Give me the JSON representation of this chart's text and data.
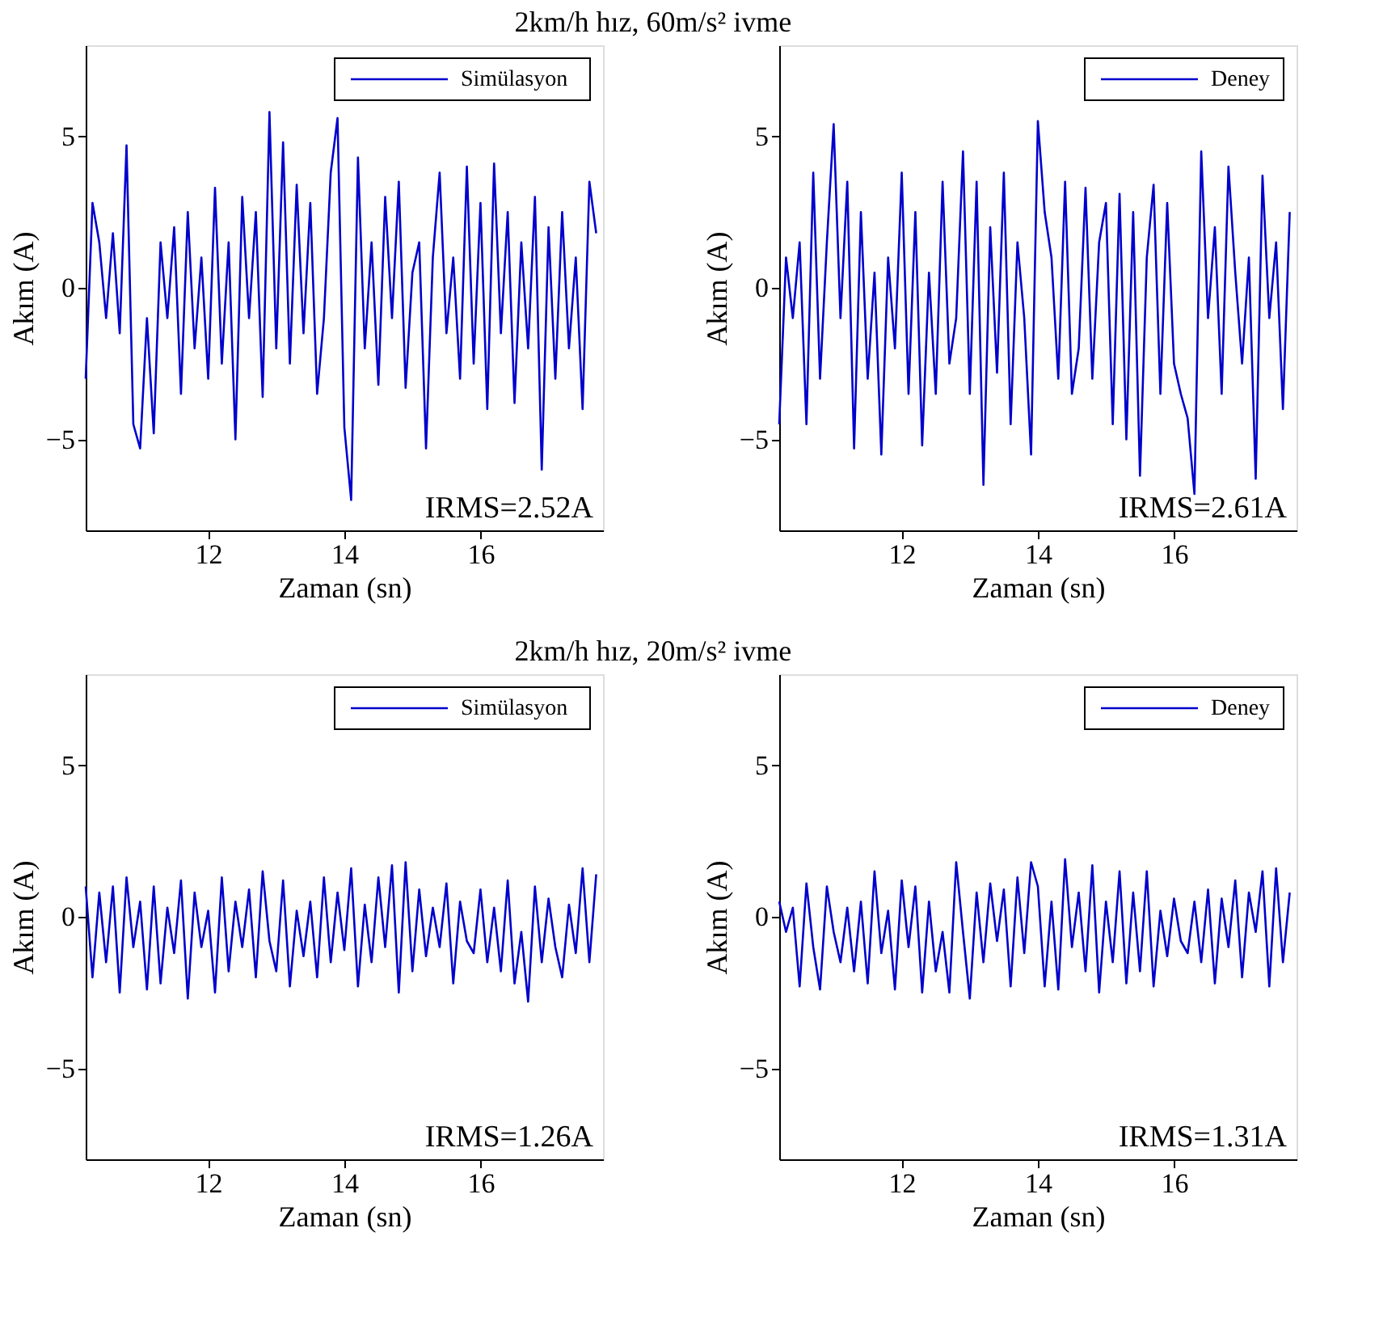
{
  "chart_data": [
    {
      "type": "line",
      "title": "2km/h hız, 60m/s² ivme",
      "xlabel": "Zaman (sn)",
      "ylabel": "Akım (A)",
      "xlim": [
        10.2,
        17.8
      ],
      "ylim": [
        -8,
        8
      ],
      "xticks": [
        12,
        14,
        16
      ],
      "yticks": [
        -5,
        0,
        5
      ],
      "legend": "top right",
      "grid": false,
      "annotations": [
        "IRMS=2.52A"
      ],
      "x": [
        10.2,
        10.3,
        10.4,
        10.5,
        10.6,
        10.7,
        10.8,
        10.9,
        11.0,
        11.1,
        11.2,
        11.3,
        11.4,
        11.5,
        11.6,
        11.7,
        11.8,
        11.9,
        12.0,
        12.1,
        12.2,
        12.3,
        12.4,
        12.5,
        12.6,
        12.7,
        12.8,
        12.9,
        13.0,
        13.1,
        13.2,
        13.3,
        13.4,
        13.5,
        13.6,
        13.7,
        13.8,
        13.9,
        14.0,
        14.1,
        14.2,
        14.3,
        14.4,
        14.5,
        14.6,
        14.7,
        14.8,
        14.9,
        15.0,
        15.1,
        15.2,
        15.3,
        15.4,
        15.5,
        15.6,
        15.7,
        15.8,
        15.9,
        16.0,
        16.1,
        16.2,
        16.3,
        16.4,
        16.5,
        16.6,
        16.7,
        16.8,
        16.9,
        17.0,
        17.1,
        17.2,
        17.3,
        17.4,
        17.5,
        17.6,
        17.7
      ],
      "series": [
        {
          "name": "Simülasyon",
          "color": "#0000cc",
          "values": [
            -3,
            2.8,
            1.5,
            -1,
            1.8,
            -1.5,
            4.7,
            -4.5,
            -5.3,
            -1,
            -4.8,
            1.5,
            -1,
            2,
            -3.5,
            2.5,
            -2,
            1,
            -3,
            3.3,
            -2.5,
            1.5,
            -5,
            3,
            -1,
            2.5,
            -3.6,
            5.8,
            -2,
            4.8,
            -2.5,
            3.4,
            -1.5,
            2.8,
            -3.5,
            -1,
            3.8,
            5.6,
            -4.6,
            -7,
            4.3,
            -2,
            1.5,
            -3.2,
            3,
            -1,
            3.5,
            -3.3,
            0.5,
            1.5,
            -5.3,
            1,
            3.8,
            -1.5,
            1,
            -3,
            4,
            -2.5,
            2.8,
            -4,
            4.1,
            -1.5,
            2.5,
            -3.8,
            1.5,
            -2,
            3,
            -6,
            2,
            -3,
            2.5,
            -2,
            1,
            -4,
            3.5,
            1.8
          ]
        }
      ]
    },
    {
      "type": "line",
      "xlabel": "Zaman (sn)",
      "ylabel": "Akım (A)",
      "xlim": [
        10.2,
        17.8
      ],
      "ylim": [
        -8,
        8
      ],
      "xticks": [
        12,
        14,
        16
      ],
      "yticks": [
        -5,
        0,
        5
      ],
      "legend": "top right",
      "grid": false,
      "annotations": [
        "IRMS=2.61A"
      ],
      "x": [
        10.2,
        10.3,
        10.4,
        10.5,
        10.6,
        10.7,
        10.8,
        10.9,
        11.0,
        11.1,
        11.2,
        11.3,
        11.4,
        11.5,
        11.6,
        11.7,
        11.8,
        11.9,
        12.0,
        12.1,
        12.2,
        12.3,
        12.4,
        12.5,
        12.6,
        12.7,
        12.8,
        12.9,
        13.0,
        13.1,
        13.2,
        13.3,
        13.4,
        13.5,
        13.6,
        13.7,
        13.8,
        13.9,
        14.0,
        14.1,
        14.2,
        14.3,
        14.4,
        14.5,
        14.6,
        14.7,
        14.8,
        14.9,
        15.0,
        15.1,
        15.2,
        15.3,
        15.4,
        15.5,
        15.6,
        15.7,
        15.8,
        15.9,
        16.0,
        16.1,
        16.2,
        16.3,
        16.4,
        16.5,
        16.6,
        16.7,
        16.8,
        16.9,
        17.0,
        17.1,
        17.2,
        17.3,
        17.4,
        17.5,
        17.6,
        17.7
      ],
      "series": [
        {
          "name": "Deney",
          "color": "#0000cc",
          "values": [
            -4.5,
            1,
            -1,
            1.5,
            -4.5,
            3.8,
            -3,
            1.5,
            5.4,
            -1,
            3.5,
            -5.3,
            2.5,
            -3,
            0.5,
            -5.5,
            1,
            -2,
            3.8,
            -3.5,
            2.5,
            -5.2,
            0.5,
            -3.5,
            3.5,
            -2.5,
            -1,
            4.5,
            -3.5,
            3.5,
            -6.5,
            2,
            -2.8,
            3.8,
            -4.5,
            1.5,
            -1,
            -5.5,
            5.5,
            2.5,
            1,
            -3,
            3.5,
            -3.5,
            -2,
            3.3,
            -3,
            1.5,
            2.8,
            -4.5,
            3.1,
            -5,
            2.5,
            -6.2,
            1,
            3.4,
            -3.5,
            2.8,
            -2.5,
            -3.5,
            -4.3,
            -6.8,
            4.5,
            -1,
            2,
            -3.5,
            4,
            0.5,
            -2.5,
            1,
            -6.3,
            3.7,
            -1,
            1.5,
            -4,
            2.5
          ]
        }
      ]
    },
    {
      "type": "line",
      "title": "2km/h hız, 20m/s² ivme",
      "xlabel": "Zaman (sn)",
      "ylabel": "Akım (A)",
      "xlim": [
        10.2,
        17.8
      ],
      "ylim": [
        -8,
        8
      ],
      "xticks": [
        12,
        14,
        16
      ],
      "yticks": [
        -5,
        0,
        5
      ],
      "legend": "top right",
      "grid": false,
      "annotations": [
        "IRMS=1.26A"
      ],
      "x": [
        10.2,
        10.3,
        10.4,
        10.5,
        10.6,
        10.7,
        10.8,
        10.9,
        11.0,
        11.1,
        11.2,
        11.3,
        11.4,
        11.5,
        11.6,
        11.7,
        11.8,
        11.9,
        12.0,
        12.1,
        12.2,
        12.3,
        12.4,
        12.5,
        12.6,
        12.7,
        12.8,
        12.9,
        13.0,
        13.1,
        13.2,
        13.3,
        13.4,
        13.5,
        13.6,
        13.7,
        13.8,
        13.9,
        14.0,
        14.1,
        14.2,
        14.3,
        14.4,
        14.5,
        14.6,
        14.7,
        14.8,
        14.9,
        15.0,
        15.1,
        15.2,
        15.3,
        15.4,
        15.5,
        15.6,
        15.7,
        15.8,
        15.9,
        16.0,
        16.1,
        16.2,
        16.3,
        16.4,
        16.5,
        16.6,
        16.7,
        16.8,
        16.9,
        17.0,
        17.1,
        17.2,
        17.3,
        17.4,
        17.5,
        17.6,
        17.7
      ],
      "series": [
        {
          "name": "Simülasyon",
          "color": "#0000cc",
          "values": [
            1,
            -2,
            0.8,
            -1.5,
            1,
            -2.5,
            1.3,
            -1,
            0.5,
            -2.4,
            1,
            -2.2,
            0.3,
            -1.2,
            1.2,
            -2.7,
            0.8,
            -1,
            0.2,
            -2.5,
            1.3,
            -1.8,
            0.5,
            -1,
            0.9,
            -2,
            1.5,
            -0.8,
            -1.8,
            1.2,
            -2.3,
            0.2,
            -1.3,
            0.5,
            -2,
            1.3,
            -1.5,
            0.8,
            -1.1,
            1.6,
            -2.3,
            0.4,
            -1.5,
            1.3,
            -1,
            1.7,
            -2.5,
            1.8,
            -1.8,
            0.9,
            -1.3,
            0.3,
            -1,
            1.1,
            -2.2,
            0.5,
            -0.8,
            -1.2,
            0.9,
            -1.5,
            0.3,
            -1.8,
            1.2,
            -2.2,
            -0.5,
            -2.8,
            1,
            -1.5,
            0.6,
            -1,
            -2,
            0.4,
            -1.2,
            1.6,
            -1.5,
            1.4
          ]
        }
      ]
    },
    {
      "type": "line",
      "xlabel": "Zaman (sn)",
      "ylabel": "Akım (A)",
      "xlim": [
        10.2,
        17.8
      ],
      "ylim": [
        -8,
        8
      ],
      "xticks": [
        12,
        14,
        16
      ],
      "yticks": [
        -5,
        0,
        5
      ],
      "legend": "top right",
      "grid": false,
      "annotations": [
        "IRMS=1.31A"
      ],
      "x": [
        10.2,
        10.3,
        10.4,
        10.5,
        10.6,
        10.7,
        10.8,
        10.9,
        11.0,
        11.1,
        11.2,
        11.3,
        11.4,
        11.5,
        11.6,
        11.7,
        11.8,
        11.9,
        12.0,
        12.1,
        12.2,
        12.3,
        12.4,
        12.5,
        12.6,
        12.7,
        12.8,
        12.9,
        13.0,
        13.1,
        13.2,
        13.3,
        13.4,
        13.5,
        13.6,
        13.7,
        13.8,
        13.9,
        14.0,
        14.1,
        14.2,
        14.3,
        14.4,
        14.5,
        14.6,
        14.7,
        14.8,
        14.9,
        15.0,
        15.1,
        15.2,
        15.3,
        15.4,
        15.5,
        15.6,
        15.7,
        15.8,
        15.9,
        16.0,
        16.1,
        16.2,
        16.3,
        16.4,
        16.5,
        16.6,
        16.7,
        16.8,
        16.9,
        17.0,
        17.1,
        17.2,
        17.3,
        17.4,
        17.5,
        17.6,
        17.7
      ],
      "series": [
        {
          "name": "Deney",
          "color": "#0000cc",
          "values": [
            0.5,
            -0.5,
            0.3,
            -2.3,
            1.1,
            -1,
            -2.4,
            1,
            -0.5,
            -1.5,
            0.3,
            -1.8,
            0.5,
            -2.2,
            1.5,
            -1.2,
            0.2,
            -2.4,
            1.2,
            -1,
            1,
            -2.5,
            0.5,
            -1.8,
            -0.5,
            -2.5,
            1.8,
            -0.5,
            -2.7,
            0.8,
            -1.5,
            1.1,
            -0.8,
            0.9,
            -2.3,
            1.3,
            -1.2,
            1.8,
            1,
            -2.3,
            0.5,
            -2.4,
            1.9,
            -1,
            0.8,
            -1.8,
            1.7,
            -2.5,
            0.5,
            -1.5,
            1.5,
            -2.2,
            0.8,
            -1.8,
            1.5,
            -2.3,
            0.2,
            -1.3,
            0.6,
            -0.8,
            -1.2,
            0.5,
            -1.5,
            0.9,
            -2.2,
            0.6,
            -1,
            1.2,
            -2,
            0.8,
            -0.5,
            1.5,
            -2.3,
            1.6,
            -1.5,
            0.8
          ]
        }
      ]
    }
  ]
}
